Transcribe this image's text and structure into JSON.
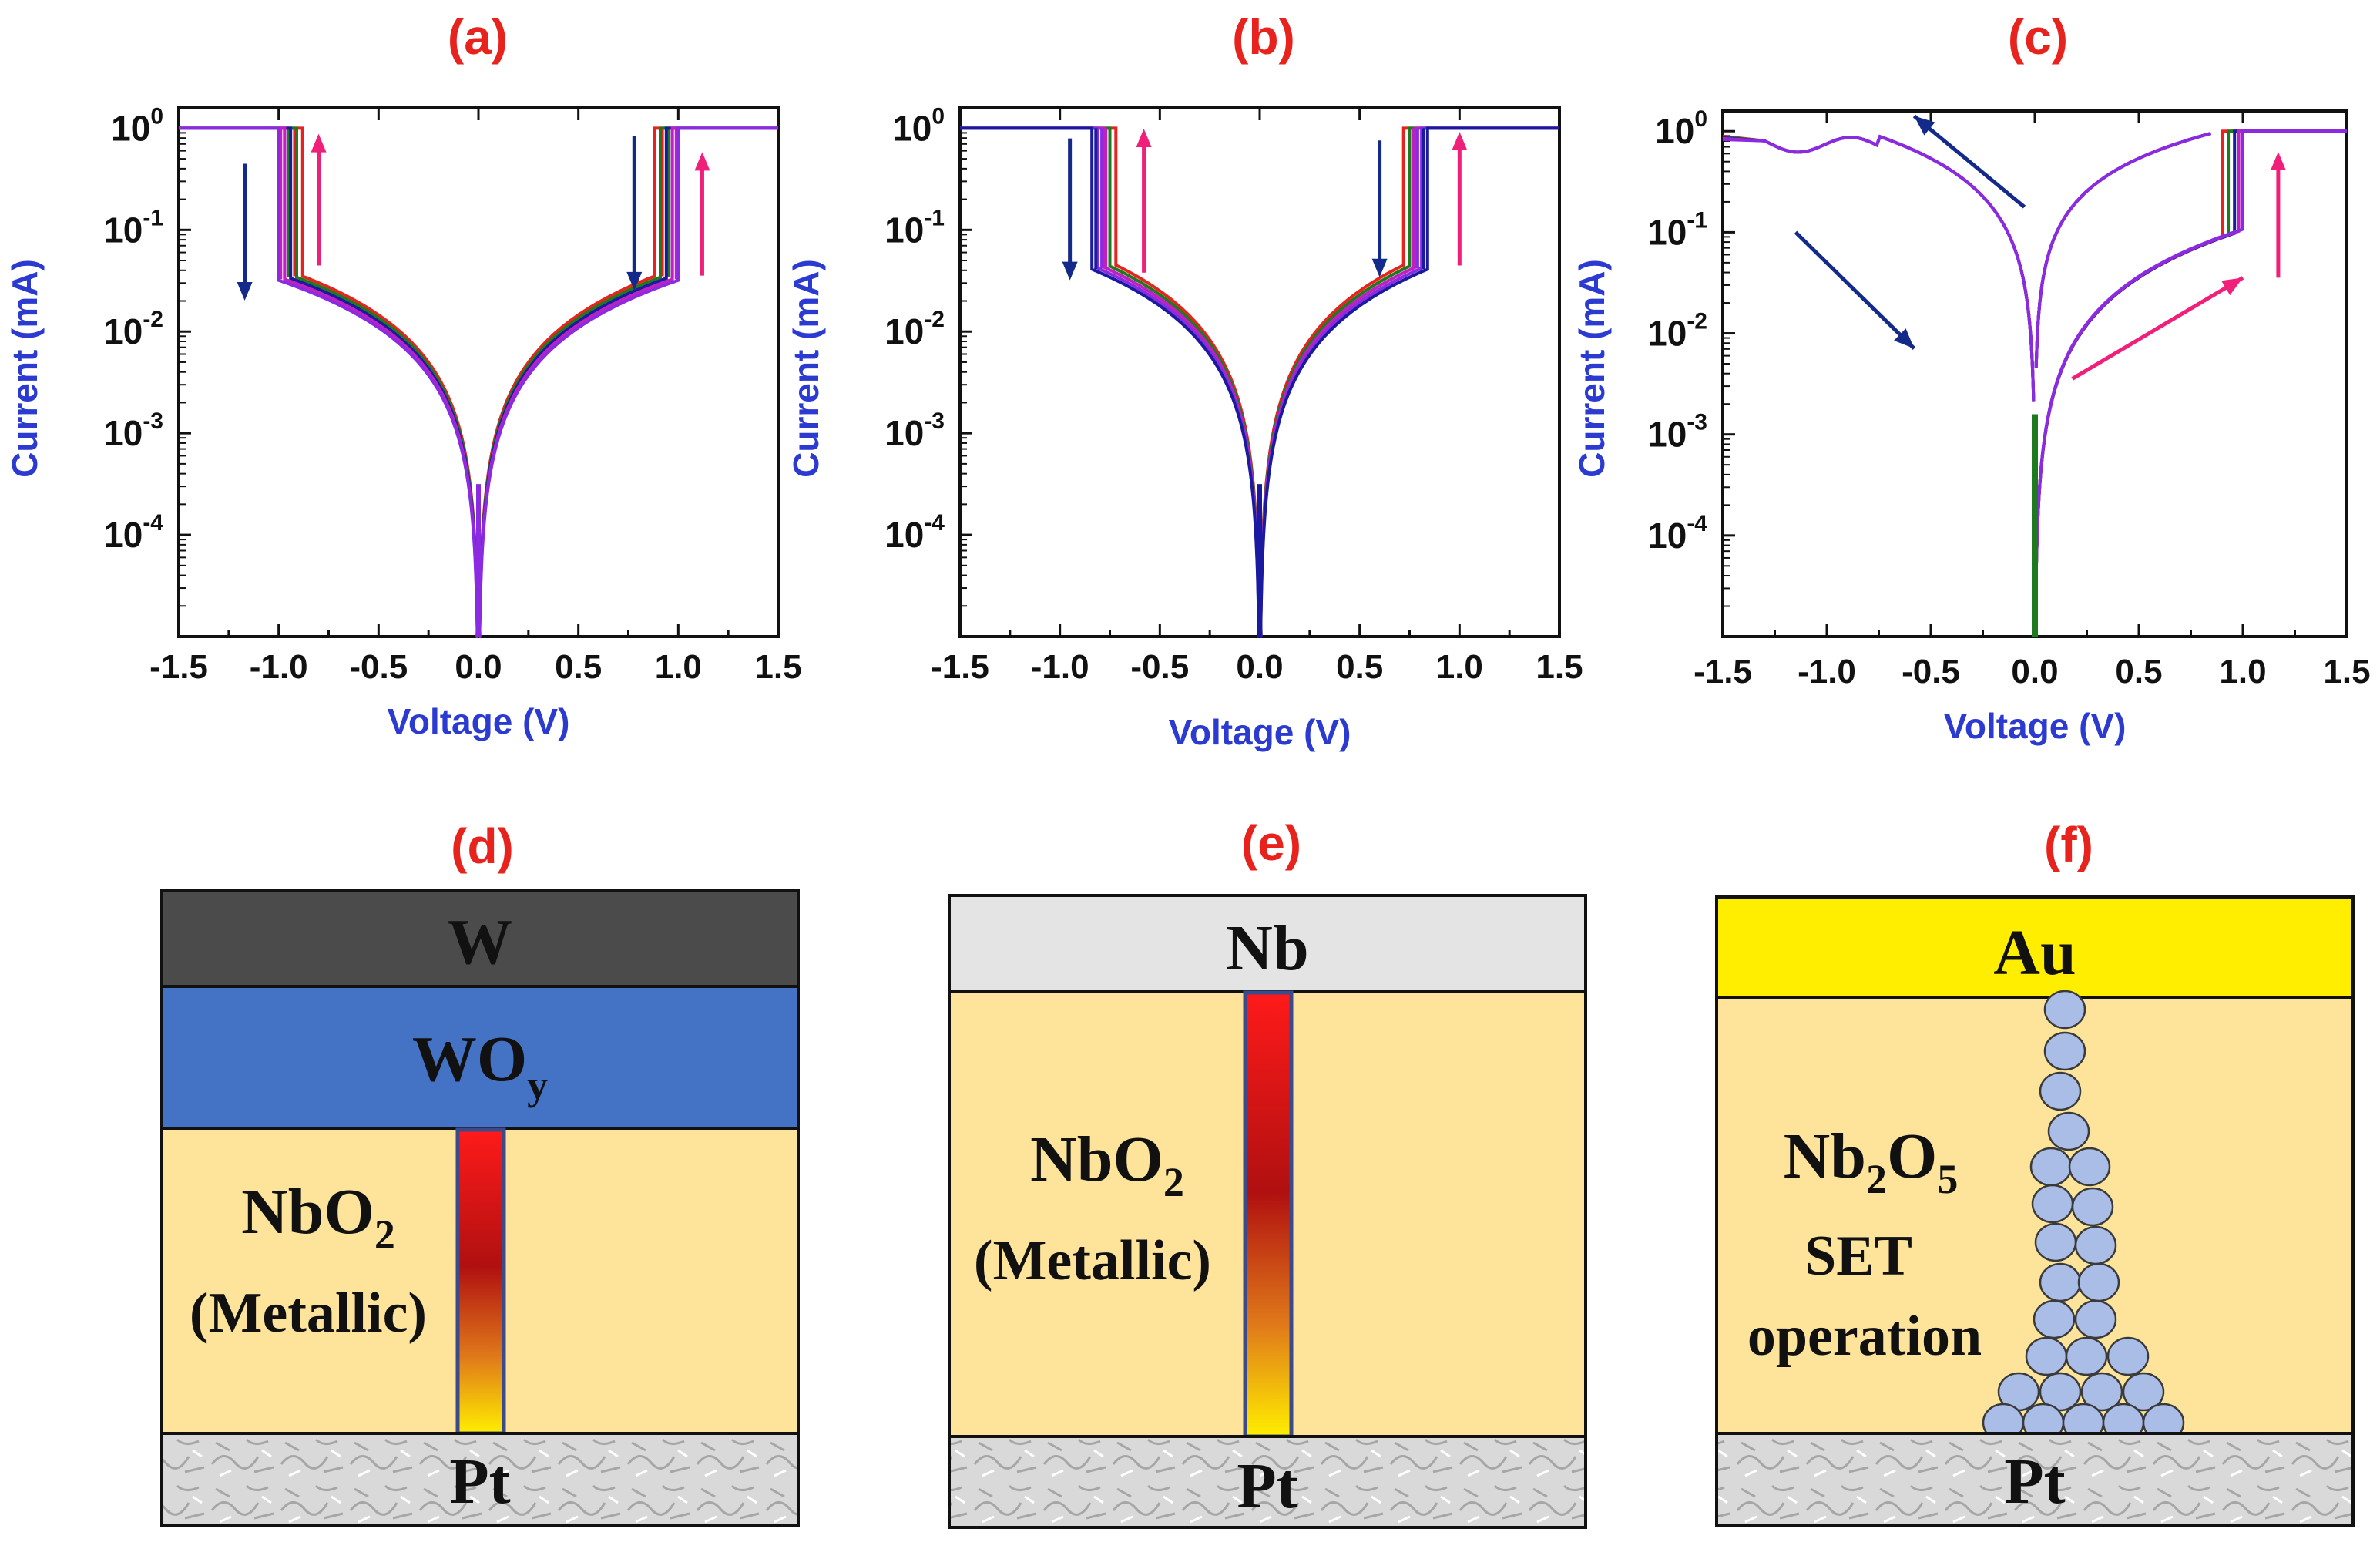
{
  "figure": {
    "panels": {
      "a": "(a)",
      "b": "(b)",
      "c": "(c)",
      "d": "(d)",
      "e": "(e)",
      "f": "(f)"
    }
  },
  "chart_data": [
    {
      "id": "a",
      "type": "line",
      "title": "(a)",
      "xlabel": "Voltage (V)",
      "ylabel": "Current (mA)",
      "xlim": [
        -1.5,
        1.5
      ],
      "ylim_log10": [
        -5,
        0.2
      ],
      "x_ticks": [
        "-1.5",
        "-1.0",
        "-0.5",
        "0.0",
        "0.5",
        "1.0",
        "1.5"
      ],
      "y_ticks": [
        {
          "base": "10",
          "exp": "0",
          "log": 0
        },
        {
          "base": "10",
          "exp": "-1",
          "log": -1
        },
        {
          "base": "10",
          "exp": "-2",
          "log": -2
        },
        {
          "base": "10",
          "exp": "-3",
          "log": -3
        },
        {
          "base": "10",
          "exp": "-4",
          "log": -4
        }
      ],
      "compliance_mA": 1,
      "threshold_V": [
        0.88,
        0.91,
        0.94,
        0.97,
        1.0
      ],
      "hold_V": [
        0.92,
        0.95,
        0.97,
        0.99,
        1.0
      ],
      "low_state_at_threshold_mA": 0.035,
      "series_colors": [
        "#e8231e",
        "#1f7a1f",
        "#1a1aa0",
        "#c020c0",
        "#8a2be2"
      ],
      "arrows": {
        "set_color": "#f0207a",
        "reset_color": "#142a8a"
      }
    },
    {
      "id": "b",
      "type": "line",
      "title": "(b)",
      "xlabel": "Voltage (V)",
      "ylabel": "Current (mA)",
      "xlim": [
        -1.5,
        1.5
      ],
      "ylim_log10": [
        -5,
        0.2
      ],
      "x_ticks": [
        "-1.5",
        "-1.0",
        "-0.5",
        "0.0",
        "0.5",
        "1.0",
        "1.5"
      ],
      "y_ticks": [
        {
          "base": "10",
          "exp": "0",
          "log": 0
        },
        {
          "base": "10",
          "exp": "-1",
          "log": -1
        },
        {
          "base": "10",
          "exp": "-2",
          "log": -2
        },
        {
          "base": "10",
          "exp": "-3",
          "log": -3
        },
        {
          "base": "10",
          "exp": "-4",
          "log": -4
        }
      ],
      "compliance_mA": 1,
      "threshold_V": [
        0.72,
        0.75,
        0.78,
        0.81,
        0.84
      ],
      "hold_V": [
        0.72,
        0.75,
        0.77,
        0.79,
        0.82
      ],
      "low_state_at_threshold_mA": 0.045,
      "series_colors": [
        "#e8231e",
        "#1f7a1f",
        "#c020c0",
        "#8a2be2",
        "#1a1aa0"
      ],
      "arrows": {
        "set_color": "#f0207a",
        "reset_color": "#142a8a"
      }
    },
    {
      "id": "c",
      "type": "line",
      "title": "(c)",
      "xlabel": "Voltage (V)",
      "ylabel": "Current (mA)",
      "xlim": [
        -1.5,
        1.5
      ],
      "ylim_log10": [
        -5,
        0.2
      ],
      "x_ticks": [
        "-1.5",
        "-1.0",
        "-0.5",
        "0.0",
        "0.5",
        "1.0",
        "1.5"
      ],
      "y_ticks": [
        {
          "base": "10",
          "exp": "0",
          "log": 0
        },
        {
          "base": "10",
          "exp": "-1",
          "log": -1
        },
        {
          "base": "10",
          "exp": "-2",
          "log": -2
        },
        {
          "base": "10",
          "exp": "-3",
          "log": -3
        },
        {
          "base": "10",
          "exp": "-4",
          "log": -4
        }
      ],
      "compliance_mA": 1,
      "set_V": [
        0.9,
        0.93,
        0.96,
        0.98,
        1.0
      ],
      "high_state_at_neg_limit_mA": 0.9,
      "series_colors": [
        "#e8231e",
        "#1f7a1f",
        "#1a1aa0",
        "#c020c0",
        "#8a2be2"
      ],
      "arrows": {
        "set_color": "#f0207a",
        "reset_color": "#142a8a"
      }
    }
  ],
  "diagrams": {
    "d": {
      "top": "W",
      "mid_main": "WO",
      "mid_sub": "y",
      "oxide_main": "NbO",
      "oxide_sub": "2",
      "oxide_note": "(Metallic)",
      "bottom": "Pt"
    },
    "e": {
      "top": "Nb",
      "oxide_main": "NbO",
      "oxide_sub": "2",
      "oxide_note": "(Metallic)",
      "bottom": "Pt"
    },
    "f": {
      "top": "Au",
      "oxide_p1": "Nb",
      "oxide_s1": "2",
      "oxide_p2": "O",
      "oxide_s2": "5",
      "note1": "SET",
      "note2": "operation",
      "bottom": "Pt"
    }
  },
  "colors": {
    "label_red": "#e8231e",
    "axis_blue": "#2b3ad0",
    "oxide": "#fde49a",
    "w_top": "#4b4b4b",
    "wo_layer": "#4472c4",
    "nb_top": "#e4e4e4",
    "au_top": "#ffee00",
    "pt": "#d9d9d9",
    "sphere": "#a9bde6"
  }
}
